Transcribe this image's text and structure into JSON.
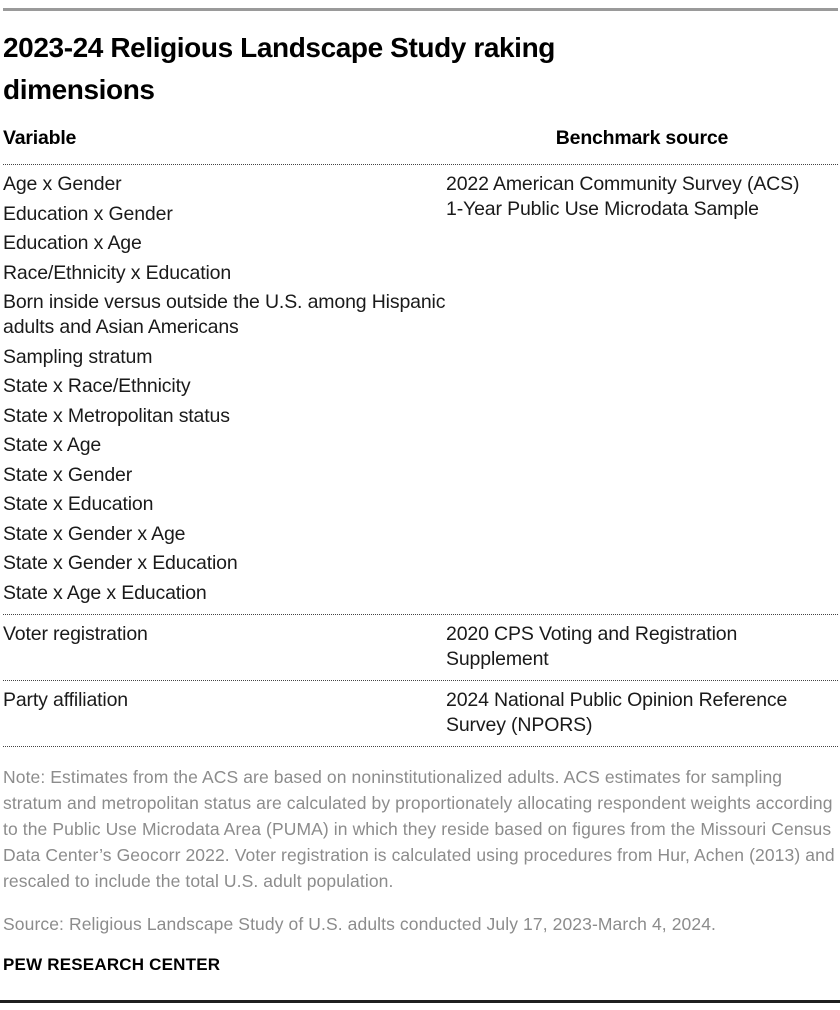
{
  "title": "2023-24 Religious Landscape Study raking dimensions",
  "table": {
    "headers": {
      "variable": "Variable",
      "benchmark": "Benchmark source"
    },
    "groups": [
      {
        "variables": [
          "Age x Gender",
          "Education x Gender",
          "Education x Age",
          "Race/Ethnicity x Education",
          "Born inside versus outside the U.S. among Hispanic adults and Asian Americans",
          "Sampling stratum",
          "State x Race/Ethnicity",
          "State x Metropolitan status",
          "State x Age",
          "State x Gender",
          "State x Education",
          "State x Gender x Age",
          "State x Gender x Education",
          "State x Age x Education"
        ],
        "benchmark": "2022 American Community Survey (ACS) 1-Year Public Use Microdata Sample"
      },
      {
        "variables": [
          "Voter registration"
        ],
        "benchmark": "2020 CPS Voting and Registration Supplement"
      },
      {
        "variables": [
          "Party affiliation"
        ],
        "benchmark": "2024 National Public Opinion Reference Survey (NPORS)"
      }
    ]
  },
  "note": "Note: Estimates from the ACS are based on noninstitutionalized adults. ACS estimates for sampling stratum and metropolitan status are calculated by proportionately allocating respondent weights according to the Public Use Microdata Area (PUMA) in which they reside based on figures from the Missouri Census Data Center’s Geocorr 2022. Voter registration is calculated using procedures from Hur, Achen (2013) and rescaled to include the total U.S. adult population.",
  "source": "Source: Religious Landscape Study of U.S. adults conducted July 17, 2023-March 4, 2024.",
  "footer_brand": "PEW RESEARCH CENTER",
  "colors": {
    "rule_top": "#9a9a9a",
    "rule_bottom": "#1f1f1f",
    "body_text": "#1a1a1a",
    "note_text": "#8c8c8c"
  }
}
